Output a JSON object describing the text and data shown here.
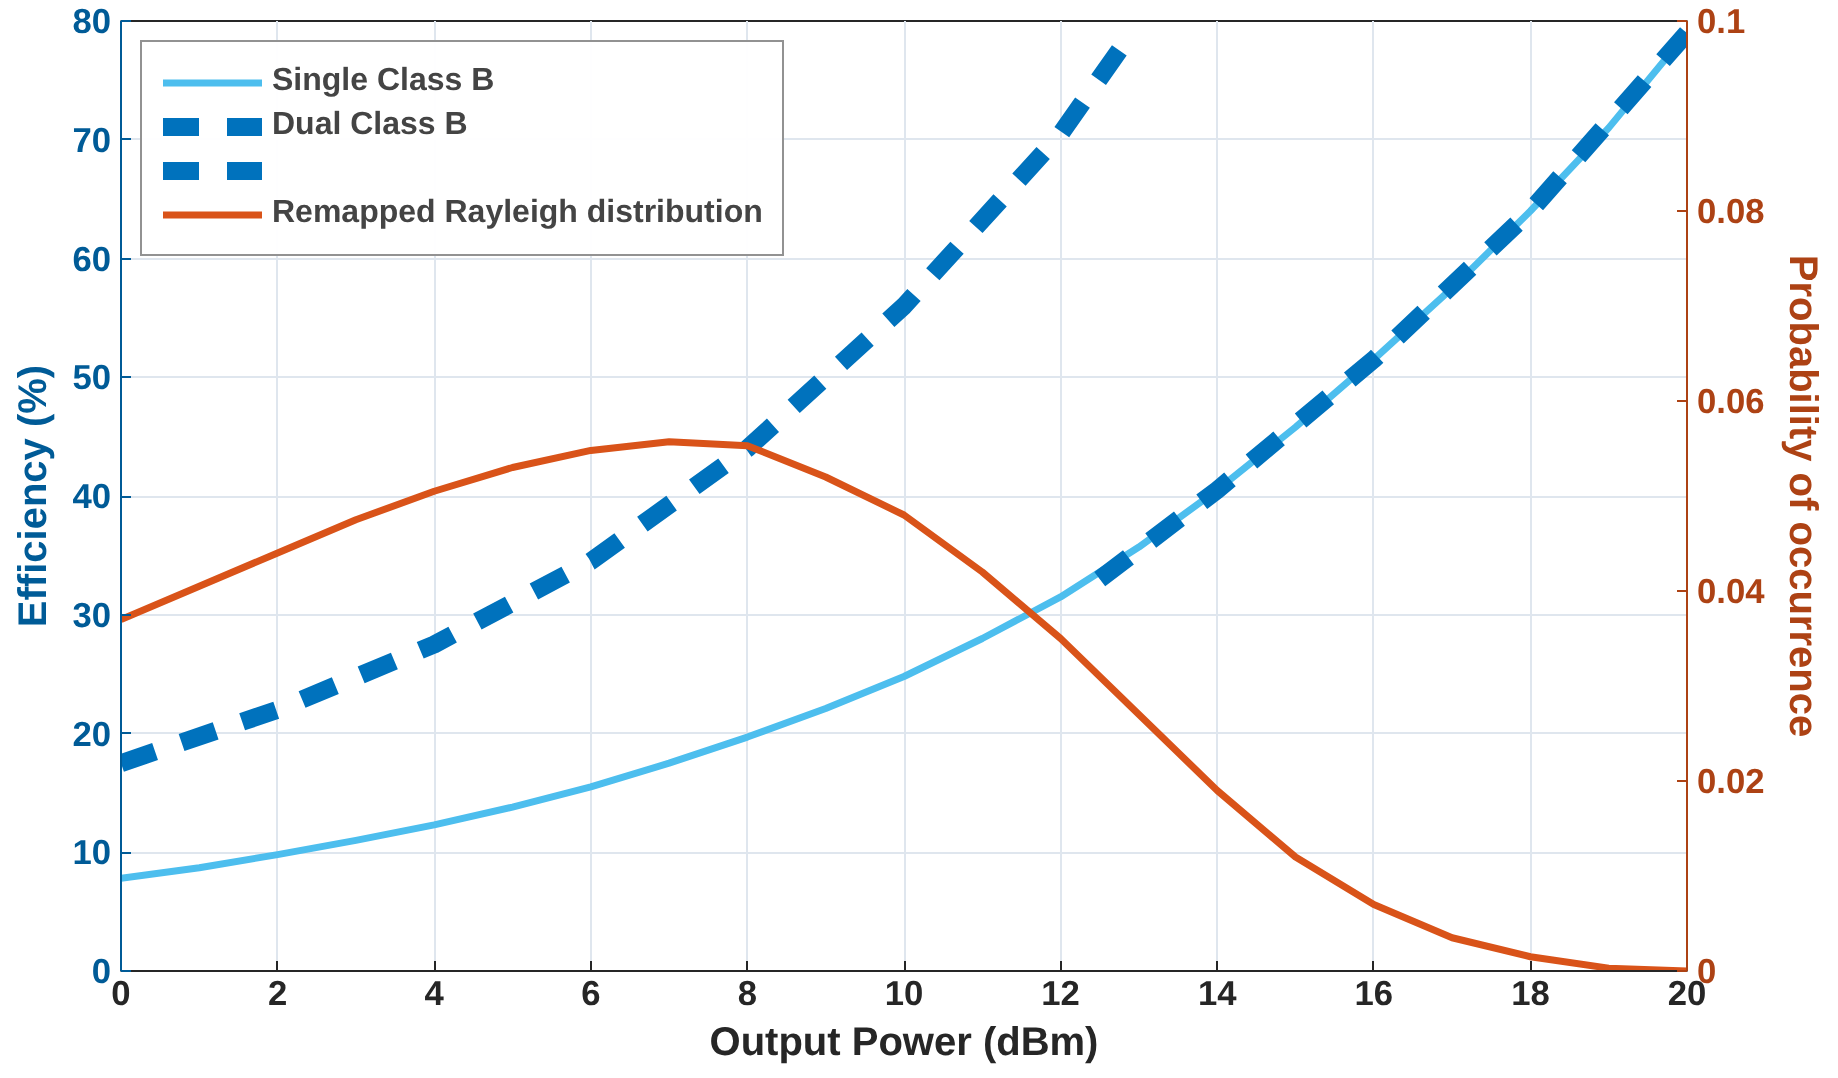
{
  "chart_data": {
    "type": "line",
    "xlabel": "Output Power (dBm)",
    "ylabel": "Efficiency (%)",
    "y2label": "Probability of occurrence",
    "xlim": [
      0,
      20
    ],
    "xticks": [
      0,
      2,
      4,
      6,
      8,
      10,
      12,
      14,
      16,
      18,
      20
    ],
    "ylim": [
      0,
      80
    ],
    "yticks": [
      0,
      10,
      20,
      30,
      40,
      50,
      60,
      70,
      80
    ],
    "y2lim": [
      0,
      0.1
    ],
    "y2ticks": [
      0,
      0.02,
      0.04,
      0.06,
      0.08,
      0.1
    ],
    "grid": true,
    "legend": "top left",
    "series": [
      {
        "name": "Single Class B",
        "color": "#4dbeee",
        "line_style": "solid",
        "x": [
          0,
          1,
          2,
          3,
          4,
          5,
          6,
          7,
          8,
          9,
          10,
          11,
          12,
          13,
          14,
          15,
          16,
          17,
          18,
          19,
          20
        ],
        "values": [
          7.8,
          8.7,
          9.8,
          11,
          12.3,
          13.8,
          15.5,
          17.5,
          19.7,
          22.1,
          24.8,
          28,
          31.5,
          35.7,
          40.5,
          45.8,
          51.5,
          57.5,
          64,
          71,
          79
        ]
      },
      {
        "name": "Dual Class B",
        "color": "#0072bd",
        "line_style": "dashed",
        "x": [
          0,
          2,
          4,
          6,
          8,
          10,
          12,
          12.8
        ],
        "values": [
          17.5,
          22,
          27.5,
          34.5,
          44,
          56,
          70.5,
          78
        ]
      },
      {
        "color": "#0072bd",
        "line_style": "dashed",
        "x": [
          12.5,
          14,
          16,
          18,
          20
        ],
        "values": [
          33,
          40.5,
          51.5,
          64,
          79
        ]
      },
      {
        "name": "Remapped Rayleigh distribution",
        "color": "#d95319",
        "line_style": "solid",
        "axis": "y2",
        "x": [
          0,
          1,
          2,
          3,
          4,
          5,
          6,
          7,
          8,
          9,
          10,
          11,
          12,
          13,
          14,
          15,
          16,
          17,
          18,
          19,
          20
        ],
        "values": [
          0.037,
          0.0405,
          0.044,
          0.0475,
          0.0505,
          0.053,
          0.0548,
          0.0557,
          0.0553,
          0.052,
          0.048,
          0.042,
          0.035,
          0.027,
          0.019,
          0.012,
          0.007,
          0.0035,
          0.0015,
          0.0003,
          0.0
        ]
      }
    ]
  }
}
